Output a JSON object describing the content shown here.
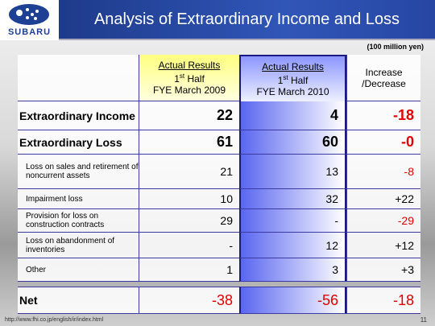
{
  "logo": {
    "brand": "SUBARU"
  },
  "header": {
    "title": "Analysis of Extraordinary Income and Loss",
    "unit": "(100 million yen)"
  },
  "table": {
    "columns": [
      {
        "line1": "Actual Results",
        "half": [
          "1",
          "st",
          " Half"
        ],
        "line3": "FYE March 2009"
      },
      {
        "line1": "Actual Results",
        "half": [
          "1",
          "st",
          " Half"
        ],
        "line3": "FYE March 2010"
      },
      {
        "line1": "Increase",
        "line3": "/Decrease"
      }
    ],
    "rows": [
      {
        "label": "Extraordinary Income",
        "cells": [
          "22",
          "4",
          "-18"
        ],
        "style": "major"
      },
      {
        "label": "Extraordinary Loss",
        "cells": [
          "61",
          "60",
          "-0"
        ],
        "style": "major"
      },
      {
        "label": "Loss on sales and retirement of noncurrent assets",
        "cells": [
          "21",
          "13",
          "-8"
        ],
        "style": "minor"
      },
      {
        "label": "Impairment loss",
        "cells": [
          "10",
          "32",
          "+22"
        ],
        "style": "minor"
      },
      {
        "label": "Provision for loss on construction contracts",
        "cells": [
          "29",
          "-",
          "-29"
        ],
        "style": "minor"
      },
      {
        "label": "Loss on abandonment of inventories",
        "cells": [
          "-",
          "12",
          "+12"
        ],
        "style": "minor"
      },
      {
        "label": "Other",
        "cells": [
          "1",
          "3",
          "+3"
        ],
        "style": "minor"
      },
      {
        "label": "Net",
        "cells": [
          "-38",
          "-56",
          "-18"
        ],
        "style": "net"
      }
    ]
  },
  "footer": {
    "url": "http://www.fhi.co.jp/english/ir/index.html",
    "page": "11"
  }
}
